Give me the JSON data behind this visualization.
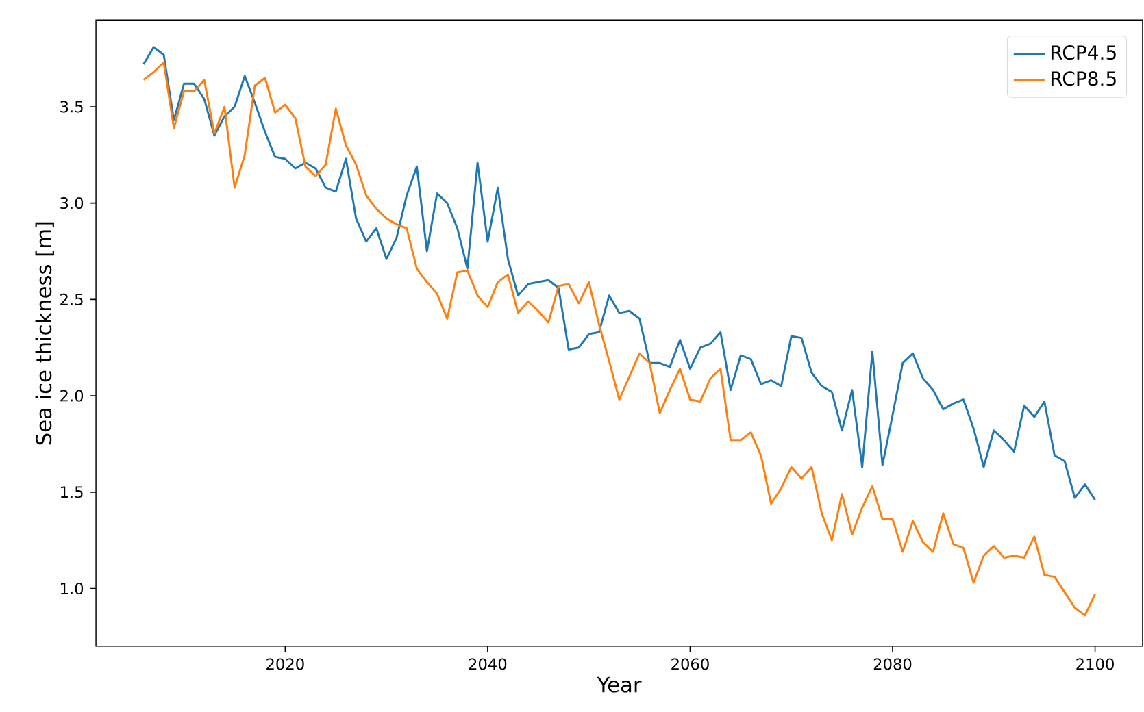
{
  "chart_data": {
    "type": "line",
    "xlabel": "Year",
    "ylabel": "Sea ice thickness [m]",
    "x": [
      2006,
      2007,
      2008,
      2009,
      2010,
      2011,
      2012,
      2013,
      2014,
      2015,
      2016,
      2017,
      2018,
      2019,
      2020,
      2021,
      2022,
      2023,
      2024,
      2025,
      2026,
      2027,
      2028,
      2029,
      2030,
      2031,
      2032,
      2033,
      2034,
      2035,
      2036,
      2037,
      2038,
      2039,
      2040,
      2041,
      2042,
      2043,
      2044,
      2045,
      2046,
      2047,
      2048,
      2049,
      2050,
      2051,
      2052,
      2053,
      2054,
      2055,
      2056,
      2057,
      2058,
      2059,
      2060,
      2061,
      2062,
      2063,
      2064,
      2065,
      2066,
      2067,
      2068,
      2069,
      2070,
      2071,
      2072,
      2073,
      2074,
      2075,
      2076,
      2077,
      2078,
      2079,
      2080,
      2081,
      2082,
      2083,
      2084,
      2085,
      2086,
      2087,
      2088,
      2089,
      2090,
      2091,
      2092,
      2093,
      2094,
      2095,
      2096,
      2097,
      2098,
      2099,
      2100
    ],
    "series": [
      {
        "name": "RCP4.5",
        "color": "#1f77b4",
        "values": [
          3.72,
          3.81,
          3.77,
          3.43,
          3.62,
          3.62,
          3.54,
          3.35,
          3.45,
          3.5,
          3.66,
          3.52,
          3.37,
          3.24,
          3.23,
          3.18,
          3.21,
          3.18,
          3.08,
          3.06,
          3.23,
          2.92,
          2.8,
          2.87,
          2.71,
          2.82,
          3.04,
          3.19,
          2.75,
          3.05,
          3.0,
          2.87,
          2.66,
          3.21,
          2.8,
          3.08,
          2.71,
          2.52,
          2.58,
          2.59,
          2.6,
          2.56,
          2.24,
          2.25,
          2.32,
          2.33,
          2.52,
          2.43,
          2.44,
          2.4,
          2.17,
          2.17,
          2.15,
          2.29,
          2.14,
          2.25,
          2.27,
          2.33,
          2.03,
          2.21,
          2.19,
          2.06,
          2.08,
          2.05,
          2.31,
          2.3,
          2.12,
          2.05,
          2.02,
          1.82,
          2.03,
          1.63,
          2.23,
          1.64,
          1.9,
          2.17,
          2.22,
          2.09,
          2.03,
          1.93,
          1.96,
          1.98,
          1.83,
          1.63,
          1.82,
          1.77,
          1.71,
          1.95,
          1.89,
          1.97,
          1.69,
          1.66,
          1.47,
          1.54,
          1.46
        ]
      },
      {
        "name": "RCP8.5",
        "color": "#ff7f0e",
        "values": [
          3.64,
          3.68,
          3.73,
          3.39,
          3.58,
          3.58,
          3.64,
          3.36,
          3.5,
          3.08,
          3.25,
          3.61,
          3.65,
          3.47,
          3.51,
          3.44,
          3.19,
          3.14,
          3.2,
          3.49,
          3.3,
          3.2,
          3.04,
          2.97,
          2.92,
          2.89,
          2.87,
          2.66,
          2.59,
          2.53,
          2.4,
          2.64,
          2.65,
          2.52,
          2.46,
          2.59,
          2.63,
          2.43,
          2.49,
          2.44,
          2.38,
          2.57,
          2.58,
          2.48,
          2.59,
          2.37,
          2.18,
          1.98,
          2.1,
          2.22,
          2.17,
          1.91,
          2.03,
          2.14,
          1.98,
          1.97,
          2.09,
          2.14,
          1.77,
          1.77,
          1.81,
          1.69,
          1.44,
          1.52,
          1.63,
          1.57,
          1.63,
          1.39,
          1.25,
          1.49,
          1.28,
          1.42,
          1.53,
          1.36,
          1.36,
          1.19,
          1.35,
          1.24,
          1.19,
          1.39,
          1.23,
          1.21,
          1.03,
          1.17,
          1.22,
          1.16,
          1.17,
          1.16,
          1.27,
          1.07,
          1.06,
          0.98,
          0.9,
          0.86,
          0.97
        ]
      }
    ],
    "xlim": [
      2001.3,
      2104.7
    ],
    "ylim": [
      0.7,
      3.95
    ],
    "xticks": [
      2020,
      2040,
      2060,
      2080,
      2100
    ],
    "yticks": [
      {
        "value": 1.0,
        "label": "1.0"
      },
      1.5,
      {
        "value": 2.0,
        "label": "2.0"
      },
      2.5,
      {
        "value": 3.0,
        "label": "3.0"
      },
      3.5
    ],
    "legend": "top right",
    "grid": false,
    "marker": "none",
    "line_style": "solid"
  }
}
